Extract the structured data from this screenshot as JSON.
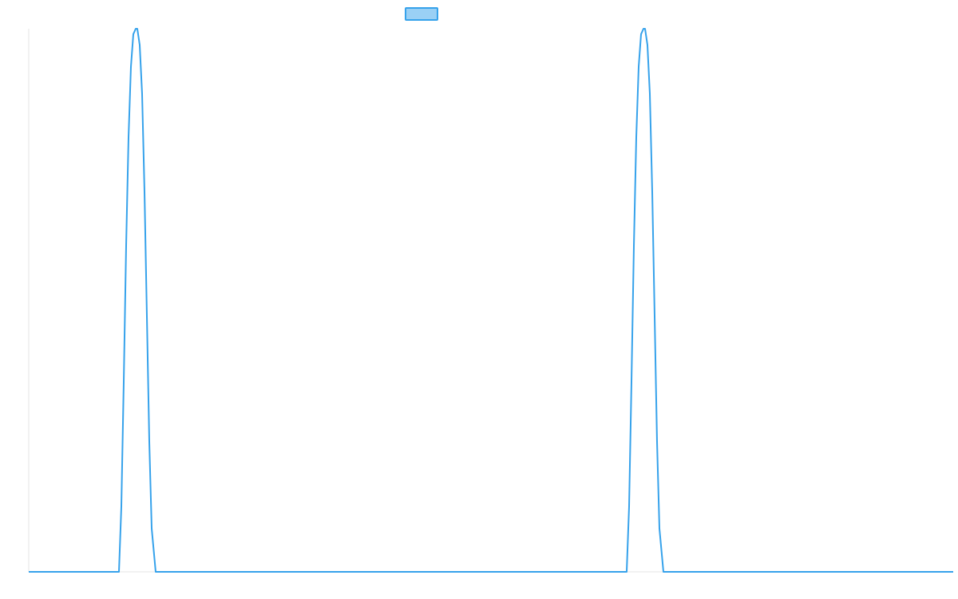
{
  "colors": {
    "series_stroke": "#36A2EB",
    "series_fill": "#9AD0F5",
    "axis": "#E6E6E6"
  },
  "chart_data": {
    "type": "line",
    "title": "",
    "xlabel": "",
    "ylabel": "",
    "grid": false,
    "legend_position": "top",
    "xlim": [
      0,
      1158
    ],
    "ylim": [
      0,
      1
    ],
    "series": [
      {
        "label": "",
        "x": [
          0,
          113,
          116,
          119,
          122,
          125,
          128,
          131,
          134,
          136,
          139,
          142,
          145,
          148,
          151,
          154,
          159,
          749,
          752,
          755,
          758,
          761,
          764,
          767,
          770,
          772,
          775,
          778,
          781,
          784,
          787,
          790,
          795,
          1158
        ],
        "y": [
          0,
          0,
          0.12,
          0.35,
          0.6,
          0.8,
          0.93,
          0.99,
          1.0,
          1.0,
          0.97,
          0.88,
          0.7,
          0.47,
          0.24,
          0.08,
          0,
          0,
          0.12,
          0.35,
          0.6,
          0.8,
          0.93,
          0.99,
          1.0,
          1.0,
          0.97,
          0.88,
          0.7,
          0.47,
          0.24,
          0.08,
          0,
          0
        ]
      }
    ]
  }
}
